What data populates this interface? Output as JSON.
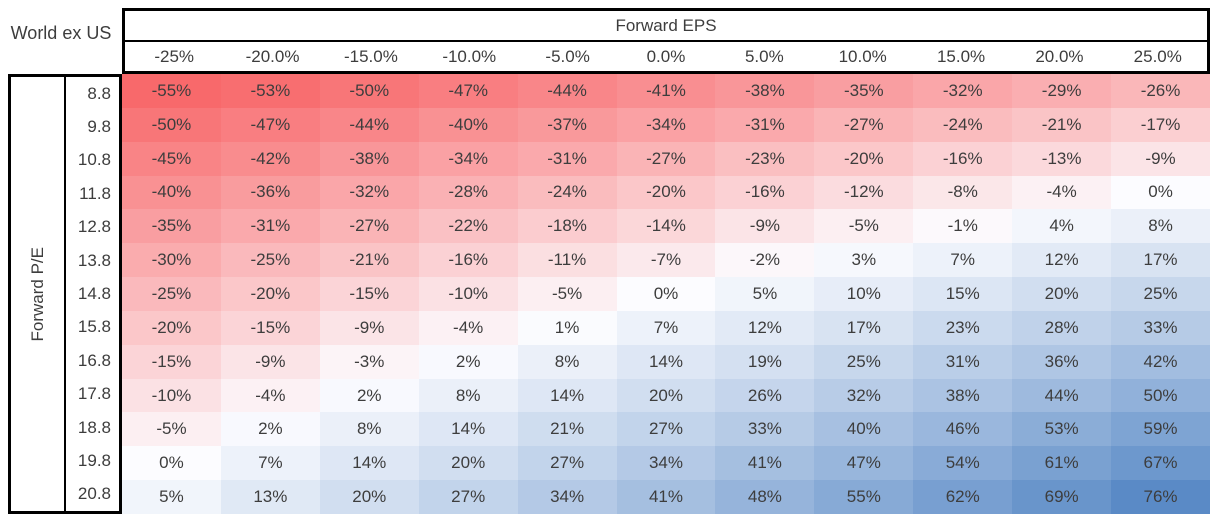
{
  "chart_data": {
    "type": "heatmap",
    "title": "World ex US",
    "x_axis_label": "Forward EPS",
    "y_axis_label": "Forward P/E",
    "x_categories": [
      "-25%",
      "-20.0%",
      "-15.0%",
      "-10.0%",
      "-5.0%",
      "0.0%",
      "5.0%",
      "10.0%",
      "15.0%",
      "20.0%",
      "25.0%"
    ],
    "y_categories": [
      "8.8",
      "9.8",
      "10.8",
      "11.8",
      "12.8",
      "13.8",
      "14.8",
      "15.8",
      "16.8",
      "17.8",
      "18.8",
      "19.8",
      "20.8"
    ],
    "values_percent": [
      [
        -55,
        -53,
        -50,
        -47,
        -44,
        -41,
        -38,
        -35,
        -32,
        -29,
        -26
      ],
      [
        -50,
        -47,
        -44,
        -40,
        -37,
        -34,
        -31,
        -27,
        -24,
        -21,
        -17
      ],
      [
        -45,
        -42,
        -38,
        -34,
        -31,
        -27,
        -23,
        -20,
        -16,
        -13,
        -9
      ],
      [
        -40,
        -36,
        -32,
        -28,
        -24,
        -20,
        -16,
        -12,
        -8,
        -4,
        0
      ],
      [
        -35,
        -31,
        -27,
        -22,
        -18,
        -14,
        -9,
        -5,
        -1,
        4,
        8
      ],
      [
        -30,
        -25,
        -21,
        -16,
        -11,
        -7,
        -2,
        3,
        7,
        12,
        17
      ],
      [
        -25,
        -20,
        -15,
        -10,
        -5,
        0,
        5,
        10,
        15,
        20,
        25
      ],
      [
        -20,
        -15,
        -9,
        -4,
        1,
        7,
        12,
        17,
        23,
        28,
        33
      ],
      [
        -15,
        -9,
        -3,
        2,
        8,
        14,
        19,
        25,
        31,
        36,
        42
      ],
      [
        -10,
        -4,
        2,
        8,
        14,
        20,
        26,
        32,
        38,
        44,
        50
      ],
      [
        -5,
        2,
        8,
        14,
        21,
        27,
        33,
        40,
        46,
        53,
        59
      ],
      [
        0,
        7,
        14,
        20,
        27,
        34,
        41,
        47,
        54,
        61,
        67
      ],
      [
        5,
        13,
        20,
        27,
        34,
        41,
        48,
        55,
        62,
        69,
        76
      ]
    ],
    "value_suffix": "%",
    "color_scale": {
      "min_value": -55,
      "min_color": "#F8696B",
      "mid_value": 0,
      "mid_color": "#FCFCFF",
      "max_value": 76,
      "max_color": "#5A8AC6"
    },
    "text_color": "#3d3d3d",
    "border_color": "#000000",
    "legend": "none",
    "gridlines": "off"
  }
}
